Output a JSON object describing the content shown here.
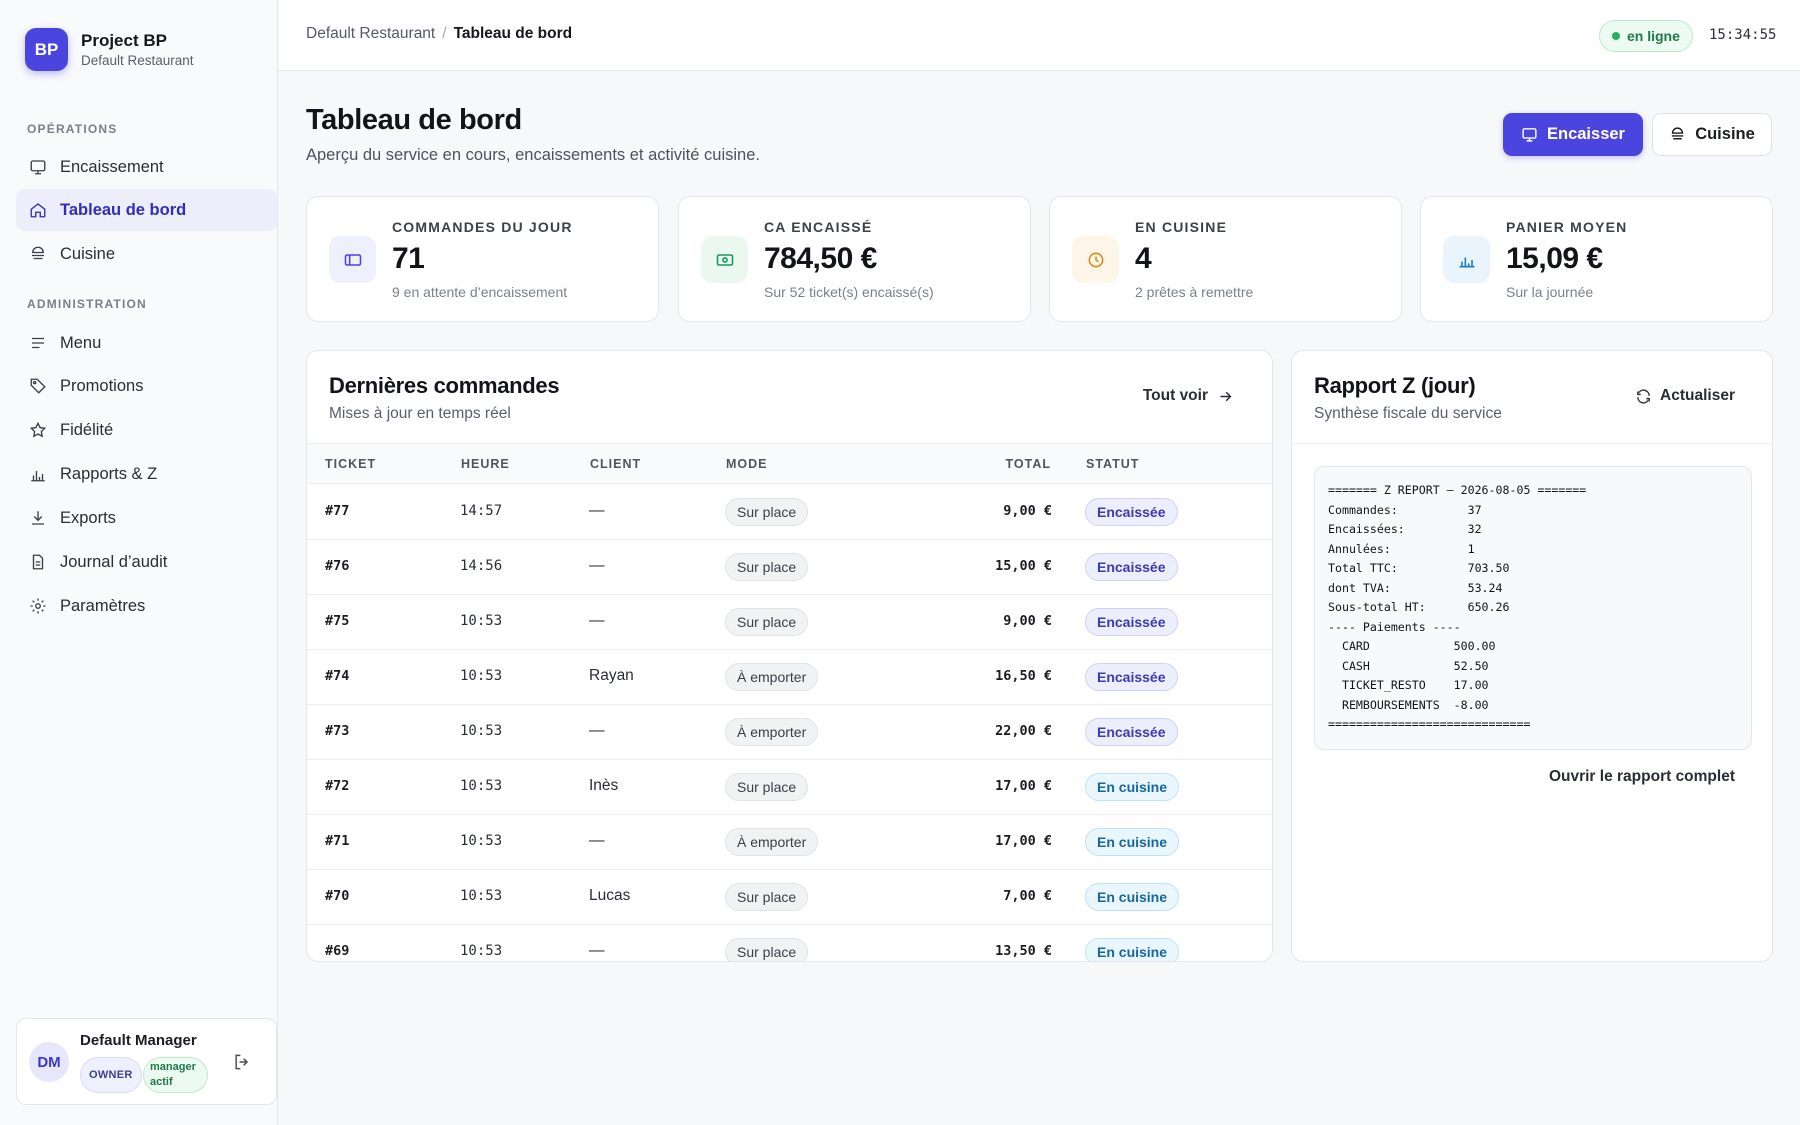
{
  "brand": {
    "logo": "BP",
    "name": "Project BP",
    "restaurant": "Default Restaurant"
  },
  "nav": {
    "section_ops": "OPÉRATIONS",
    "section_admin": "ADMINISTRATION",
    "items": [
      {
        "label": "Encaissement",
        "icon": "monitor-icon"
      },
      {
        "label": "Tableau de bord",
        "icon": "home-icon",
        "active": true
      },
      {
        "label": "Cuisine",
        "icon": "kitchen-icon"
      },
      {
        "label": "Menu",
        "icon": "menu-lines-icon"
      },
      {
        "label": "Promotions",
        "icon": "tag-icon"
      },
      {
        "label": "Fidélité",
        "icon": "star-icon"
      },
      {
        "label": "Rapports & Z",
        "icon": "bar-chart-icon"
      },
      {
        "label": "Exports",
        "icon": "download-icon"
      },
      {
        "label": "Journal d’audit",
        "icon": "document-icon"
      },
      {
        "label": "Paramètres",
        "icon": "gear-icon"
      }
    ]
  },
  "user": {
    "initials": "DM",
    "name": "Default Manager",
    "role": "OWNER",
    "status": "manager actif"
  },
  "topbar": {
    "crumb_root": "Default Restaurant",
    "crumb_sep": "/",
    "crumb_current": "Tableau de bord",
    "status": "en ligne",
    "clock": "15:34:55"
  },
  "header": {
    "title": "Tableau de bord",
    "subtitle": "Aperçu du service en cours, encaissements et activité cuisine.",
    "primary_button": "Encaisser",
    "secondary_button": "Cuisine"
  },
  "stats": [
    {
      "label": "COMMANDES DU JOUR",
      "value": "71",
      "sub": "9 en attente d’encaissement",
      "icon": "ticket-icon",
      "color": "#4b45e0"
    },
    {
      "label": "CA ENCAISSÉ",
      "value": "784,50 €",
      "sub": "Sur 52 ticket(s) encaissé(s)",
      "icon": "cash-icon",
      "color": "#1a9a5a"
    },
    {
      "label": "EN CUISINE",
      "value": "4",
      "sub": "2 prêtes à remettre",
      "icon": "clock-icon",
      "color": "#d98b1a"
    },
    {
      "label": "PANIER MOYEN",
      "value": "15,09 €",
      "sub": "Sur la journée",
      "icon": "bar-chart-icon",
      "color": "#1a7fc0"
    }
  ],
  "orders": {
    "title": "Dernières commandes",
    "subtitle": "Mises à jour en temps réel",
    "link": "Tout voir",
    "columns": [
      "TICKET",
      "HEURE",
      "CLIENT",
      "MODE",
      "TOTAL",
      "STATUT"
    ],
    "rows": [
      {
        "ticket": "#77",
        "heure": "14:57",
        "client": "—",
        "mode": "Sur place",
        "total": "9,00 €",
        "statut": "Encaissée",
        "kind": "paid"
      },
      {
        "ticket": "#76",
        "heure": "14:56",
        "client": "—",
        "mode": "Sur place",
        "total": "15,00 €",
        "statut": "Encaissée",
        "kind": "paid"
      },
      {
        "ticket": "#75",
        "heure": "10:53",
        "client": "—",
        "mode": "Sur place",
        "total": "9,00 €",
        "statut": "Encaissée",
        "kind": "paid"
      },
      {
        "ticket": "#74",
        "heure": "10:53",
        "client": "Rayan",
        "mode": "À emporter",
        "total": "16,50 €",
        "statut": "Encaissée",
        "kind": "paid"
      },
      {
        "ticket": "#73",
        "heure": "10:53",
        "client": "—",
        "mode": "À emporter",
        "total": "22,00 €",
        "statut": "Encaissée",
        "kind": "paid"
      },
      {
        "ticket": "#72",
        "heure": "10:53",
        "client": "Inès",
        "mode": "Sur place",
        "total": "17,00 €",
        "statut": "En cuisine",
        "kind": "kitchen"
      },
      {
        "ticket": "#71",
        "heure": "10:53",
        "client": "—",
        "mode": "À emporter",
        "total": "17,00 €",
        "statut": "En cuisine",
        "kind": "kitchen"
      },
      {
        "ticket": "#70",
        "heure": "10:53",
        "client": "Lucas",
        "mode": "Sur place",
        "total": "7,00 €",
        "statut": "En cuisine",
        "kind": "kitchen"
      },
      {
        "ticket": "#69",
        "heure": "10:53",
        "client": "—",
        "mode": "Sur place",
        "total": "13,50 €",
        "statut": "En cuisine",
        "kind": "kitchen"
      }
    ]
  },
  "zreport": {
    "title": "Rapport Z (jour)",
    "subtitle": "Synthèse fiscale du service",
    "refresh": "Actualiser",
    "body": "======= Z REPORT — 2026-08-05 =======\nCommandes:          37\nEncaissées:         32\nAnnulées:           1\nTotal TTC:          703.50\ndont TVA:           53.24\nSous-total HT:      650.26\n---- Paiements ----\n  CARD            500.00\n  CASH            52.50\n  TICKET_RESTO    17.00\n  REMBOURSEMENTS  -8.00\n=============================",
    "footer_link": "Ouvrir le rapport complet"
  }
}
